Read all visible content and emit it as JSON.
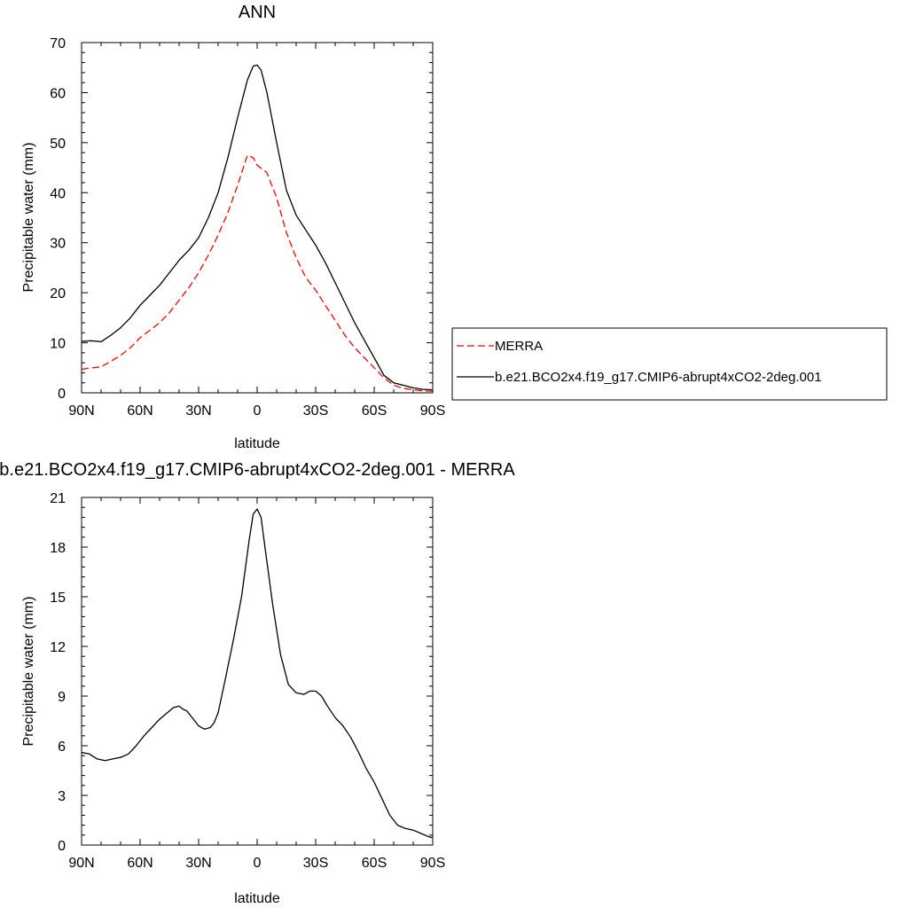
{
  "chart_data": [
    {
      "type": "line",
      "title": "ANN",
      "xlabel": "latitude",
      "ylabel": "Precipitable water (mm)",
      "xlim": [
        90,
        -90
      ],
      "ylim": [
        0,
        70
      ],
      "x_ticks": [
        90,
        60,
        30,
        0,
        -30,
        -60,
        -90
      ],
      "x_tick_labels": [
        "90N",
        "60N",
        "30N",
        "0",
        "30S",
        "60S",
        "90S"
      ],
      "y_ticks": [
        0,
        10,
        20,
        30,
        40,
        50,
        60,
        70
      ],
      "y_tick_labels": [
        "0",
        "10",
        "20",
        "30",
        "40",
        "50",
        "60",
        "70"
      ],
      "grid": false,
      "legend_position": "right",
      "series": [
        {
          "name": "MERRA",
          "color": "#ff0000",
          "style": "dashed",
          "x": [
            90,
            85,
            80,
            75,
            70,
            65,
            60,
            55,
            50,
            45,
            40,
            35,
            30,
            25,
            20,
            15,
            10,
            5,
            2,
            0,
            -5,
            -10,
            -15,
            -20,
            -25,
            -30,
            -35,
            -40,
            -45,
            -50,
            -55,
            -60,
            -65,
            -70,
            -75,
            -80,
            -85,
            -90
          ],
          "y": [
            4.7,
            5.0,
            5.2,
            6.3,
            7.5,
            9.0,
            11.0,
            12.5,
            14.0,
            16.0,
            18.5,
            21.0,
            24.0,
            27.5,
            31.5,
            36.0,
            41.5,
            47.5,
            47.0,
            45.5,
            44.0,
            39.0,
            32.0,
            27.0,
            23.0,
            20.5,
            17.5,
            14.5,
            11.5,
            9.0,
            7.0,
            5.0,
            3.0,
            1.5,
            0.9,
            0.6,
            0.4,
            0.3
          ]
        },
        {
          "name": "b.e21.BCO2x4.f19_g17.CMIP6-abrupt4xCO2-2deg.001",
          "color": "#000000",
          "style": "solid",
          "x": [
            90,
            85,
            80,
            75,
            70,
            65,
            60,
            55,
            50,
            45,
            40,
            35,
            30,
            25,
            20,
            15,
            10,
            5,
            2,
            0,
            -2,
            -5,
            -10,
            -15,
            -20,
            -25,
            -30,
            -35,
            -40,
            -45,
            -50,
            -55,
            -60,
            -65,
            -70,
            -75,
            -80,
            -85,
            -90
          ],
          "y": [
            10.3,
            10.4,
            10.2,
            11.5,
            13.0,
            15.0,
            17.5,
            19.5,
            21.5,
            24.0,
            26.5,
            28.5,
            31.0,
            35.0,
            40.0,
            47.0,
            55.0,
            62.5,
            65.3,
            65.5,
            64.5,
            60.0,
            50.0,
            40.5,
            35.5,
            32.5,
            29.5,
            26.0,
            22.0,
            18.0,
            14.0,
            10.5,
            7.0,
            3.5,
            2.0,
            1.5,
            1.0,
            0.7,
            0.6
          ]
        }
      ]
    },
    {
      "type": "line",
      "title": "b.e21.BCO2x4.f19_g17.CMIP6-abrupt4xCO2-2deg.001 - MERRA",
      "xlabel": "latitude",
      "ylabel": "Precipitable water (mm)",
      "xlim": [
        90,
        -90
      ],
      "ylim": [
        0,
        21
      ],
      "x_ticks": [
        90,
        60,
        30,
        0,
        -30,
        -60,
        -90
      ],
      "x_tick_labels": [
        "90N",
        "60N",
        "30N",
        "0",
        "30S",
        "60S",
        "90S"
      ],
      "y_ticks": [
        0,
        3,
        6,
        9,
        12,
        15,
        18,
        21
      ],
      "y_tick_labels": [
        "0",
        "3",
        "6",
        "9",
        "12",
        "15",
        "18",
        "21"
      ],
      "grid": false,
      "series": [
        {
          "color": "#000000",
          "style": "solid",
          "x": [
            90,
            86,
            82,
            78,
            74,
            70,
            66,
            62,
            58,
            54,
            50,
            46,
            43,
            40,
            38,
            36,
            34,
            30,
            27,
            24,
            22,
            20,
            16,
            12,
            8,
            4,
            2,
            0,
            -2,
            -4,
            -8,
            -12,
            -16,
            -20,
            -24,
            -27,
            -30,
            -33,
            -36,
            -40,
            -44,
            -48,
            -52,
            -56,
            -60,
            -64,
            -68,
            -72,
            -76,
            -80,
            -84,
            -88,
            -90
          ],
          "y": [
            5.6,
            5.5,
            5.2,
            5.1,
            5.2,
            5.3,
            5.5,
            6.0,
            6.6,
            7.1,
            7.6,
            8.0,
            8.3,
            8.4,
            8.2,
            8.1,
            7.8,
            7.2,
            7.0,
            7.1,
            7.4,
            8.0,
            10.2,
            12.5,
            15.0,
            18.5,
            20.0,
            20.3,
            19.8,
            18.0,
            14.5,
            11.5,
            9.7,
            9.2,
            9.1,
            9.3,
            9.3,
            9.0,
            8.4,
            7.7,
            7.2,
            6.5,
            5.6,
            4.6,
            3.8,
            2.8,
            1.8,
            1.2,
            1.0,
            0.9,
            0.7,
            0.5,
            0.45
          ]
        }
      ]
    }
  ]
}
